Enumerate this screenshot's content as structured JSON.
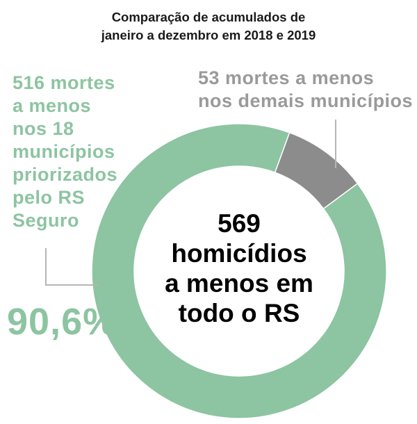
{
  "title_line1": "Comparação de acumulados de",
  "title_line2": "janeiro a dezembro em 2018 e 2019",
  "chart_data": {
    "type": "pie",
    "subtype": "donut",
    "slices": [
      {
        "label": "516 mortes a menos nos 18 municípios priorizados pelo RS Seguro",
        "value": 516,
        "percent": 90.6,
        "color": "#8dc4a1"
      },
      {
        "label": "53 mortes a menos nos demais municípios",
        "value": 53,
        "color": "#8c8c8c"
      }
    ],
    "center_total": 569
  },
  "labels": {
    "left_lines": [
      "516 mortes",
      "a menos",
      "nos 18",
      "municípios",
      "priorizados",
      "pelo RS",
      "Seguro"
    ],
    "right_lines": [
      "53 mortes a menos",
      "nos demais municípios"
    ],
    "percent": "90,6%",
    "center_lines": [
      "569",
      "homicídios",
      "a menos em",
      "todo o RS"
    ]
  },
  "colors": {
    "green": "#8dc4a1",
    "gray": "#8c8c8c",
    "green_text": "#8dc4a1",
    "gray_text": "#9a9a9a",
    "leader_line": "#b5b5b5"
  }
}
